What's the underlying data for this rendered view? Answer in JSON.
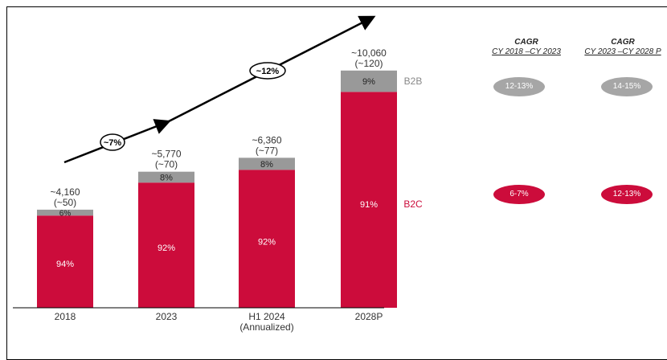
{
  "chart_data": {
    "type": "bar",
    "stacked": true,
    "categories": [
      "2018",
      "2023",
      "H1 2024\n(Annualized)",
      "2028P"
    ],
    "category_lines": [
      [
        "2018"
      ],
      [
        "2023"
      ],
      [
        "H1 2024",
        "(Annualized)"
      ],
      [
        "2028P"
      ]
    ],
    "totals": [
      "~4,160",
      "~5,770",
      "~6,360",
      "~10,060"
    ],
    "totals_sub": [
      "(~50)",
      "(~70)",
      "(~77)",
      "(~120)"
    ],
    "total_values": [
      4160,
      5770,
      6360,
      10060
    ],
    "series": [
      {
        "name": "B2C",
        "percent": [
          94,
          92,
          92,
          91
        ],
        "labels": [
          "94%",
          "92%",
          "92%",
          "91%"
        ],
        "color": "#cc0c3b"
      },
      {
        "name": "B2B",
        "percent": [
          6,
          8,
          8,
          9
        ],
        "labels": [
          "6%",
          "8%",
          "8%",
          "9%"
        ],
        "color": "#999999"
      }
    ],
    "ylim": [
      0,
      10700
    ],
    "growth_labels": [
      "~7%",
      "~12%"
    ],
    "legend_placement": "right of last bar"
  },
  "cagr_table": {
    "columns": [
      {
        "title": "CAGR",
        "subtitle": "CY 2018 –CY 2023",
        "b2b": "12-13%",
        "b2c": "6-7%"
      },
      {
        "title": "CAGR",
        "subtitle": "CY 2023 –CY 2028 P",
        "b2b": "14-15%",
        "b2c": "12-13%"
      }
    ]
  },
  "colors": {
    "b2c": "#cc0c3b",
    "b2b": "#999999",
    "pill_grey": "#a6a6a6",
    "text": "#333333"
  }
}
